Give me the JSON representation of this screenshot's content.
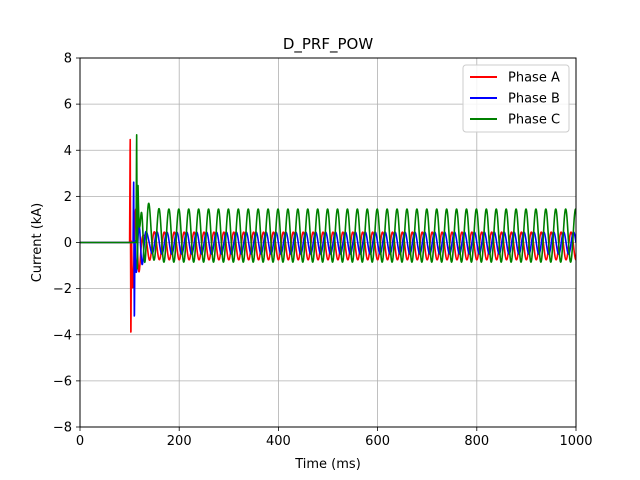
{
  "chart_data": {
    "type": "line",
    "title": "D_PRF_POW",
    "xlabel": "Time (ms)",
    "ylabel": "Current (kA)",
    "xlim": [
      0,
      1000
    ],
    "ylim": [
      -8,
      8
    ],
    "xticks": [
      0,
      200,
      400,
      600,
      800,
      1000
    ],
    "yticks": [
      -8,
      -6,
      -4,
      -2,
      0,
      2,
      4,
      6,
      8
    ],
    "xtick_labels": [
      "0",
      "200",
      "400",
      "600",
      "800",
      "1000"
    ],
    "ytick_labels": [
      "−8",
      "−6",
      "−4",
      "−2",
      "0",
      "2",
      "4",
      "6",
      "8"
    ],
    "grid": true,
    "legend_position": "top-right",
    "series": [
      {
        "name": "Phase A",
        "color": "#ff0000",
        "fault_start_ms": 100,
        "steady_period_ms": 20,
        "peak_max": 4.8,
        "peak_min": -4.55,
        "steady_max": 0.45,
        "steady_min": -0.75
      },
      {
        "name": "Phase B",
        "color": "#0000ff",
        "fault_start_ms": 107,
        "steady_period_ms": 20,
        "peak_max": 2.85,
        "peak_min": -3.65,
        "steady_max": 0.45,
        "steady_min": -0.5
      },
      {
        "name": "Phase C",
        "color": "#008000",
        "fault_start_ms": 113,
        "steady_period_ms": 20,
        "peak_max": 4.9,
        "peak_min": -1.6,
        "steady_max": 1.45,
        "steady_min": -0.85
      }
    ]
  }
}
